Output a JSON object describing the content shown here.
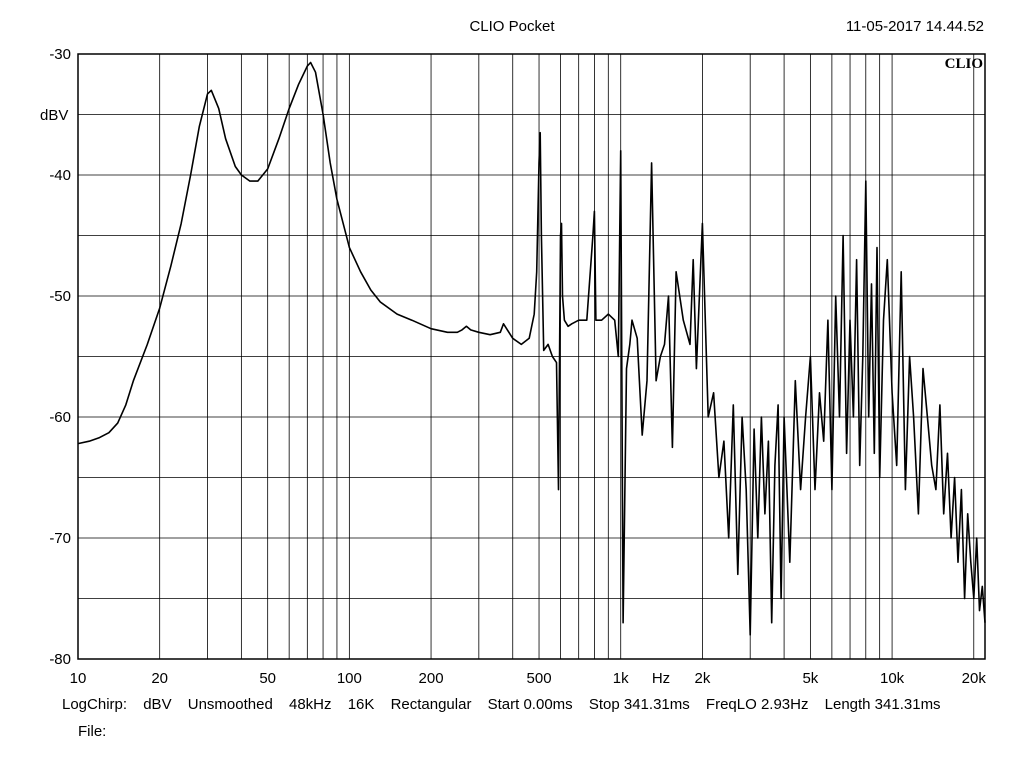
{
  "header": {
    "title": "CLIO Pocket",
    "timestamp": "11-05-2017 14.44.52",
    "brand": "CLIO"
  },
  "footer": {
    "items": [
      "LogChirp:",
      "dBV",
      "Unsmoothed",
      "48kHz",
      "16K",
      "Rectangular",
      "Start 0.00ms",
      "Stop 341.31ms",
      "FreqLO 2.93Hz",
      "Length 341.31ms"
    ],
    "file_label": "File:"
  },
  "chart_data": {
    "type": "line",
    "xscale": "log",
    "xlim": [
      10,
      22000
    ],
    "ylim": [
      -80,
      -30
    ],
    "ylabel": "dBV",
    "xunit_label": "Hz",
    "grid": true,
    "yticks": [
      -30,
      -40,
      -50,
      -60,
      -70,
      -80
    ],
    "xticks": [
      {
        "value": 10,
        "label": "10"
      },
      {
        "value": 20,
        "label": "20"
      },
      {
        "value": 50,
        "label": "50"
      },
      {
        "value": 100,
        "label": "100"
      },
      {
        "value": 200,
        "label": "200"
      },
      {
        "value": 500,
        "label": "500"
      },
      {
        "value": 1000,
        "label": "1k"
      },
      {
        "value": 2000,
        "label": "2k"
      },
      {
        "value": 5000,
        "label": "5k"
      },
      {
        "value": 10000,
        "label": "10k"
      },
      {
        "value": 20000,
        "label": "20k"
      }
    ],
    "series": [
      {
        "color": "#000000",
        "x": [
          10,
          11,
          12,
          13,
          14,
          15,
          16,
          18,
          20,
          22,
          24,
          26,
          28,
          30,
          31,
          33,
          35,
          38,
          40,
          43,
          46,
          50,
          55,
          60,
          65,
          70,
          72,
          75,
          80,
          85,
          90,
          100,
          110,
          120,
          130,
          150,
          170,
          200,
          230,
          250,
          260,
          270,
          280,
          300,
          330,
          360,
          370,
          400,
          430,
          460,
          480,
          490,
          500,
          505,
          510,
          520,
          540,
          560,
          580,
          590,
          600,
          605,
          610,
          620,
          640,
          660,
          700,
          750,
          790,
          800,
          810,
          850,
          900,
          950,
          980,
          1000,
          1020,
          1050,
          1080,
          1100,
          1150,
          1200,
          1250,
          1300,
          1350,
          1400,
          1450,
          1500,
          1550,
          1600,
          1700,
          1800,
          1850,
          1900,
          2000,
          2100,
          2200,
          2300,
          2400,
          2500,
          2600,
          2700,
          2800,
          2900,
          3000,
          3100,
          3200,
          3300,
          3400,
          3500,
          3600,
          3700,
          3800,
          3900,
          4000,
          4200,
          4400,
          4600,
          4800,
          5000,
          5200,
          5400,
          5600,
          5800,
          6000,
          6200,
          6400,
          6600,
          6800,
          7000,
          7200,
          7400,
          7600,
          7800,
          8000,
          8200,
          8400,
          8600,
          8800,
          9000,
          9300,
          9600,
          10000,
          10400,
          10800,
          11200,
          11600,
          12000,
          12500,
          13000,
          13500,
          14000,
          14500,
          15000,
          15500,
          16000,
          16500,
          17000,
          17500,
          18000,
          18500,
          19000,
          19500,
          20000,
          20500,
          21000,
          21500,
          22000
        ],
        "y": [
          -62.2,
          -62.0,
          -61.7,
          -61.3,
          -60.5,
          -59.0,
          -57.0,
          -54.0,
          -51.0,
          -47.5,
          -44.0,
          -40.0,
          -36.0,
          -33.3,
          -33.0,
          -34.5,
          -37.0,
          -39.3,
          -40.0,
          -40.5,
          -40.5,
          -39.5,
          -37.0,
          -34.5,
          -32.5,
          -31.0,
          -30.7,
          -31.5,
          -35.0,
          -39.0,
          -42.0,
          -46.0,
          -48.0,
          -49.5,
          -50.5,
          -51.5,
          -52.0,
          -52.7,
          -53.0,
          -53.0,
          -52.8,
          -52.5,
          -52.8,
          -53.0,
          -53.2,
          -53.0,
          -52.3,
          -53.5,
          -54.0,
          -53.5,
          -51.5,
          -48.0,
          -39.0,
          -36.5,
          -45.0,
          -54.5,
          -54.0,
          -55.0,
          -55.5,
          -66.0,
          -45.0,
          -44.0,
          -50.0,
          -52.0,
          -52.5,
          -52.3,
          -52.0,
          -52.0,
          -45.0,
          -43.0,
          -52.0,
          -52.0,
          -51.5,
          -52.0,
          -55.0,
          -38.0,
          -77.0,
          -56.0,
          -54.0,
          -52.0,
          -53.5,
          -61.5,
          -57.0,
          -39.0,
          -57.0,
          -55.0,
          -54.0,
          -50.0,
          -62.5,
          -48.0,
          -52.0,
          -54.0,
          -47.0,
          -56.0,
          -44.0,
          -60.0,
          -58.0,
          -65.0,
          -62.0,
          -70.0,
          -59.0,
          -73.0,
          -60.0,
          -66.0,
          -78.0,
          -61.0,
          -70.0,
          -60.0,
          -68.0,
          -62.0,
          -77.0,
          -64.0,
          -59.0,
          -75.0,
          -60.0,
          -72.0,
          -57.0,
          -66.0,
          -60.0,
          -55.0,
          -66.0,
          -58.0,
          -62.0,
          -52.0,
          -66.0,
          -50.0,
          -60.0,
          -45.0,
          -63.0,
          -52.0,
          -60.0,
          -47.0,
          -64.0,
          -55.0,
          -40.5,
          -60.0,
          -49.0,
          -63.0,
          -46.0,
          -65.0,
          -52.0,
          -47.0,
          -58.0,
          -64.0,
          -48.0,
          -66.0,
          -55.0,
          -60.0,
          -68.0,
          -56.0,
          -60.0,
          -64.0,
          -66.0,
          -59.0,
          -68.0,
          -63.0,
          -70.0,
          -65.0,
          -72.0,
          -66.0,
          -75.0,
          -68.0,
          -72.0,
          -75.0,
          -70.0,
          -76.0,
          -74.0,
          -77.0
        ]
      }
    ]
  }
}
